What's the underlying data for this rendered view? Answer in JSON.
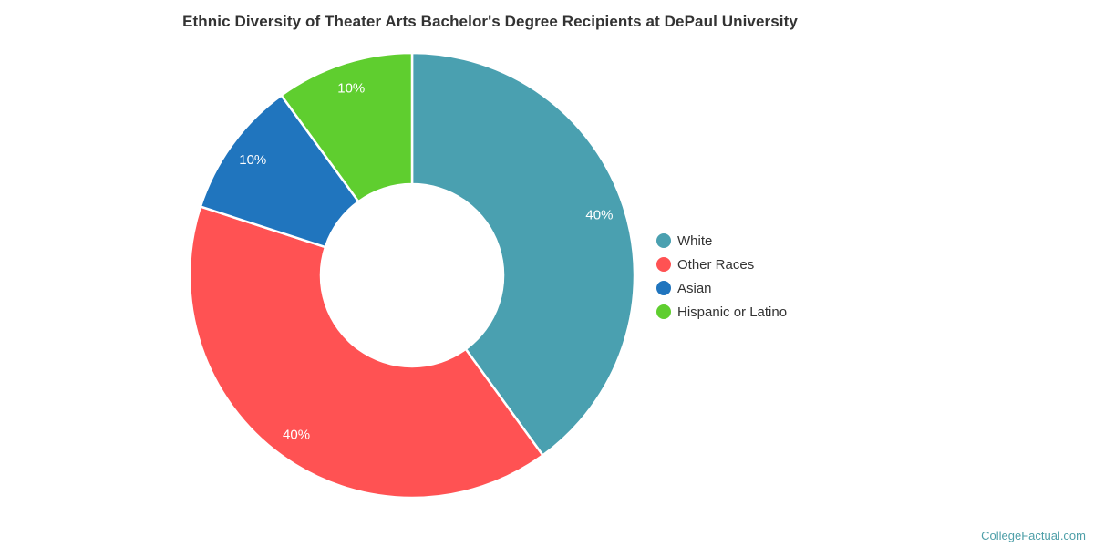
{
  "chart_data": {
    "type": "pie",
    "subtype": "donut",
    "title": "Ethnic Diversity of Theater Arts Bachelor's Degree Recipients at DePaul University",
    "categories": [
      "White",
      "Other Races",
      "Asian",
      "Hispanic or Latino"
    ],
    "values": [
      40,
      40,
      10,
      10
    ],
    "slice_labels": [
      "40%",
      "40%",
      "10%",
      "10%"
    ],
    "colors": [
      "#4AA0B0",
      "#FF5253",
      "#2075BE",
      "#5FCE2F"
    ],
    "start_angle_deg": 0,
    "direction": "clockwise",
    "inner_radius_ratio": 0.41,
    "legend_position": "right",
    "slice_label_color": "#ffffff",
    "title_color": "#333333",
    "legend_text_color": "#333333",
    "slice_border_color": "#ffffff"
  },
  "footer": {
    "watermark": "CollegeFactual.com",
    "watermark_color": "#4E9FA8"
  }
}
